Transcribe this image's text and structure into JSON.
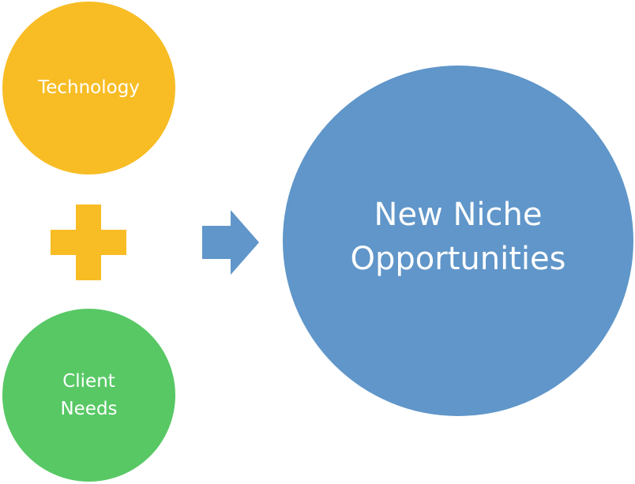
{
  "diagram": {
    "inputs": [
      {
        "id": "technology",
        "lines": [
          "Technology"
        ],
        "color": "#f8bd25"
      },
      {
        "id": "client-needs",
        "lines": [
          "Client",
          "Needs"
        ],
        "color": "#58c865"
      }
    ],
    "operator": {
      "symbol": "plus",
      "color": "#f8bd25"
    },
    "connector": {
      "symbol": "arrow-right",
      "color": "#6096c9"
    },
    "output": {
      "id": "new-niche-opportunities",
      "lines": [
        "New Niche",
        "Opportunities"
      ],
      "color": "#6096c9"
    }
  }
}
